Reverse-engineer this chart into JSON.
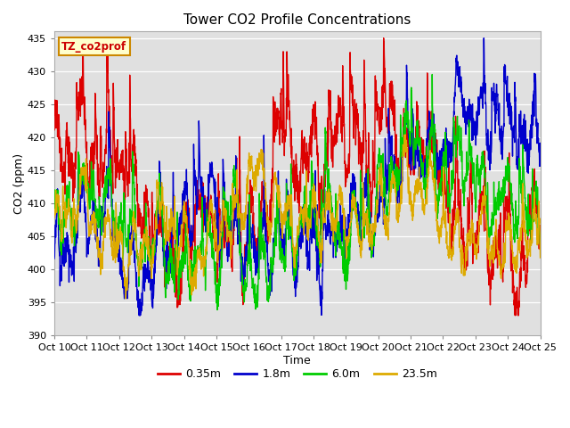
{
  "title": "Tower CO2 Profile Concentrations",
  "xlabel": "Time",
  "ylabel": "CO2 (ppm)",
  "ylim": [
    390,
    436
  ],
  "yticks": [
    390,
    395,
    400,
    405,
    410,
    415,
    420,
    425,
    430,
    435
  ],
  "xtick_labels": [
    "Oct 10",
    "Oct 11",
    "Oct 12",
    "Oct 13",
    "Oct 14",
    "Oct 15",
    "Oct 16",
    "Oct 17",
    "Oct 18",
    "Oct 19",
    "Oct 20",
    "Oct 21",
    "Oct 22",
    "Oct 23",
    "Oct 24",
    "Oct 25"
  ],
  "series_colors": [
    "#dd0000",
    "#0000cc",
    "#00cc00",
    "#ddaa00"
  ],
  "series_labels": [
    "0.35m",
    "1.8m",
    "6.0m",
    "23.5m"
  ],
  "series_linewidths": [
    1.0,
    1.0,
    1.0,
    1.0
  ],
  "label_box_text": "TZ_co2prof",
  "label_box_facecolor": "#ffffcc",
  "label_box_edgecolor": "#cc8800",
  "label_box_textcolor": "#cc0000",
  "plot_bg_color": "#e0e0e0",
  "fig_bg_color": "#ffffff",
  "n_points": 2160,
  "base_co2": 408,
  "amplitude": 8,
  "seed": 7
}
